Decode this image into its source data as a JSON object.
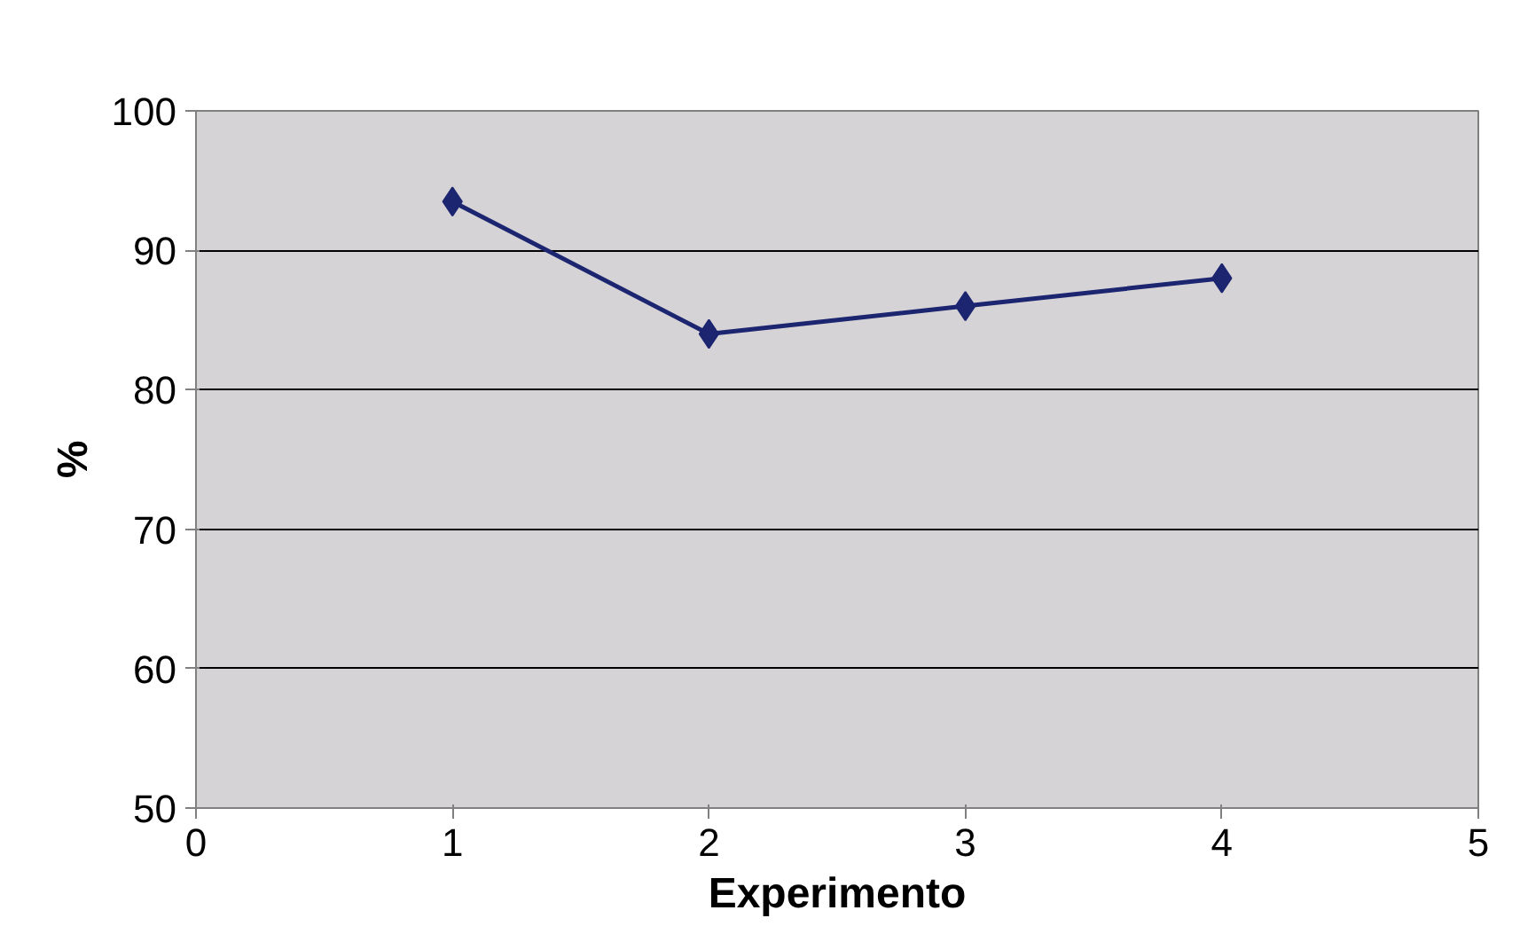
{
  "chart_data": {
    "type": "line",
    "xlabel": "Experimento",
    "ylabel": "%",
    "x": [
      1,
      2,
      3,
      4
    ],
    "series": [
      {
        "color": "#1c2570",
        "values": [
          93.5,
          84,
          86,
          88
        ]
      }
    ],
    "xlim": [
      0,
      5
    ],
    "xticks": [
      0,
      1,
      2,
      3,
      4,
      5
    ],
    "ylim": [
      50,
      100
    ],
    "yticks": [
      50,
      60,
      70,
      80,
      90,
      100
    ],
    "grid": "y",
    "marker": "diamond",
    "line_style": "solid"
  }
}
